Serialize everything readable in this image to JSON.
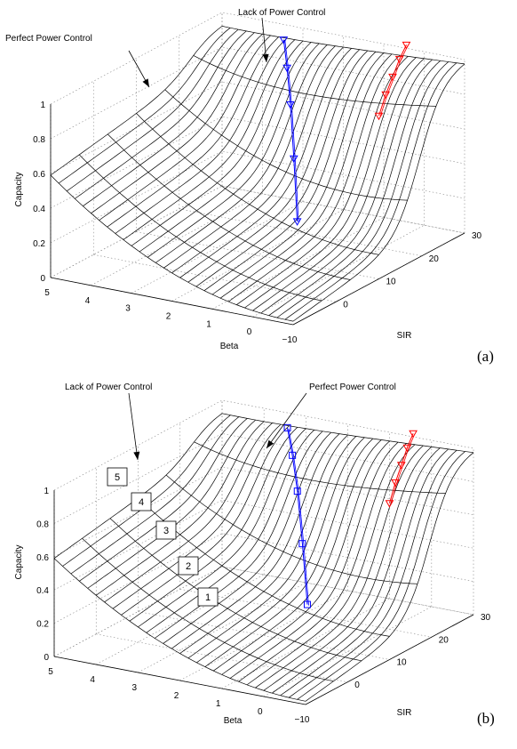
{
  "chart_data": [
    {
      "type": "surface",
      "panel_label": "(a)",
      "zlabel": "Capacity",
      "xlabel": "Beta",
      "ylabel": "SIR",
      "x_ticks": [
        "5",
        "4",
        "3",
        "2",
        "1",
        "0",
        "−10"
      ],
      "y_ticks": [
        "0",
        "10",
        "20",
        "30"
      ],
      "z_ticks": [
        "0",
        "0.2",
        "0.4",
        "0.6",
        "0.8",
        "1"
      ],
      "annotations": [
        "Perfect Power Control",
        "Lack of Power Control"
      ],
      "series": [
        {
          "name": "Lack of Power Control",
          "color": "#0000ff",
          "marker": "triangle-down",
          "x": [
            3.2,
            2.6,
            2.0,
            1.4,
            0.8
          ],
          "y": [
            24,
            18,
            12,
            6,
            0
          ],
          "z": [
            1.0,
            0.95,
            0.85,
            0.65,
            0.4
          ]
        },
        {
          "name": "Perfect Power Control",
          "color": "#ff0000",
          "marker": "triangle-down",
          "x": [
            1.2,
            0.9,
            0.6,
            0.3,
            0.0
          ],
          "y": [
            30,
            25,
            20,
            15,
            10
          ],
          "z": [
            1.0,
            1.0,
            0.98,
            0.96,
            0.92
          ]
        }
      ],
      "boxed_labels": []
    },
    {
      "type": "surface",
      "panel_label": "(b)",
      "zlabel": "Capacity",
      "xlabel": "Beta",
      "ylabel": "SIR",
      "x_ticks": [
        "5",
        "4",
        "3",
        "2",
        "1",
        "0",
        "−10"
      ],
      "y_ticks": [
        "0",
        "10",
        "20",
        "30"
      ],
      "z_ticks": [
        "0",
        "0.2",
        "0.4",
        "0.6",
        "0.8",
        "1"
      ],
      "annotations": [
        "Lack of Power Control",
        "Perfect Power Control"
      ],
      "series": [
        {
          "name": "Lack of Power Control",
          "color": "#0000ff",
          "marker": "square",
          "x": [
            3.2,
            2.6,
            2.0,
            1.4,
            0.8
          ],
          "y": [
            24,
            18,
            12,
            6,
            0
          ],
          "z": [
            1.0,
            0.95,
            0.85,
            0.65,
            0.4
          ]
        },
        {
          "name": "Perfect Power Control",
          "color": "#ff0000",
          "marker": "triangle-down",
          "x": [
            1.2,
            0.9,
            0.6,
            0.3,
            0.0
          ],
          "y": [
            30,
            25,
            20,
            15,
            10
          ],
          "z": [
            1.0,
            1.0,
            0.98,
            0.96,
            0.92
          ]
        }
      ],
      "boxed_labels": [
        "5",
        "4",
        "3",
        "2",
        "1"
      ]
    }
  ]
}
